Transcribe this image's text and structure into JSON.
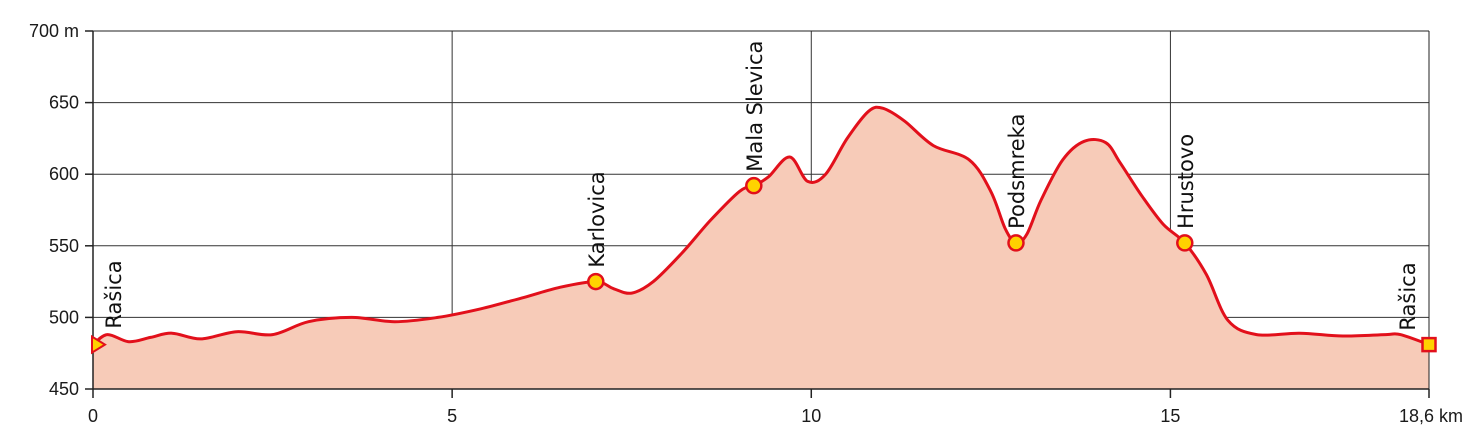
{
  "chart_data": {
    "type": "area",
    "title": "",
    "xlabel": "",
    "ylabel": "",
    "x_unit": "km",
    "y_unit": "m",
    "xlim": [
      0,
      18.6
    ],
    "ylim": [
      450,
      700
    ],
    "grid": true,
    "x_ticks": [
      {
        "value": 0,
        "label": "0"
      },
      {
        "value": 5,
        "label": "5"
      },
      {
        "value": 10,
        "label": "10"
      },
      {
        "value": 15,
        "label": "15"
      },
      {
        "value": 18.6,
        "label": "18,6 km"
      }
    ],
    "y_ticks": [
      {
        "value": 450,
        "label": "450"
      },
      {
        "value": 500,
        "label": "500"
      },
      {
        "value": 550,
        "label": "550"
      },
      {
        "value": 600,
        "label": "600"
      },
      {
        "value": 650,
        "label": "650"
      },
      {
        "value": 700,
        "label": "700 m"
      }
    ],
    "series": [
      {
        "x": [
          0,
          0.2,
          0.5,
          0.8,
          1.1,
          1.5,
          2.0,
          2.5,
          3.0,
          3.6,
          4.2,
          4.8,
          5.4,
          6.0,
          6.5,
          7.0,
          7.25,
          7.5,
          7.8,
          8.2,
          8.6,
          9.0,
          9.2,
          9.4,
          9.7,
          9.95,
          10.2,
          10.5,
          10.8,
          11.0,
          11.3,
          11.7,
          12.2,
          12.5,
          12.7,
          12.85,
          13.0,
          13.2,
          13.5,
          13.8,
          14.1,
          14.3,
          14.6,
          14.9,
          15.2,
          15.5,
          15.8,
          16.2,
          16.8,
          17.4,
          18.0,
          18.2,
          18.6
        ],
        "y": [
          481,
          488,
          483,
          486,
          489,
          485,
          490,
          488,
          497,
          500,
          497,
          500,
          506,
          514,
          521,
          525,
          520,
          517,
          525,
          545,
          568,
          588,
          592,
          598,
          612,
          595,
          600,
          625,
          644,
          646,
          637,
          620,
          610,
          588,
          562,
          552,
          558,
          582,
          610,
          623,
          622,
          608,
          585,
          565,
          552,
          530,
          498,
          488,
          489,
          487,
          488,
          488,
          481
        ]
      }
    ],
    "waypoints": [
      {
        "name": "Rašica",
        "x": 0,
        "y": 481,
        "marker": "triangle"
      },
      {
        "name": "Karlovica",
        "x": 7.0,
        "y": 525,
        "marker": "circle"
      },
      {
        "name": "Mala Slevica",
        "x": 9.2,
        "y": 592,
        "marker": "circle"
      },
      {
        "name": "Podsmreka",
        "x": 12.85,
        "y": 552,
        "marker": "circle"
      },
      {
        "name": "Hrustovo",
        "x": 15.2,
        "y": 552,
        "marker": "circle"
      },
      {
        "name": "Rašica",
        "x": 18.6,
        "y": 481,
        "marker": "square"
      }
    ],
    "colors": {
      "line": "#e2101b",
      "fill": "#f7cbb8",
      "grid": "#333333",
      "marker_fill": "#ffd200",
      "marker_stroke": "#e2101b"
    }
  }
}
